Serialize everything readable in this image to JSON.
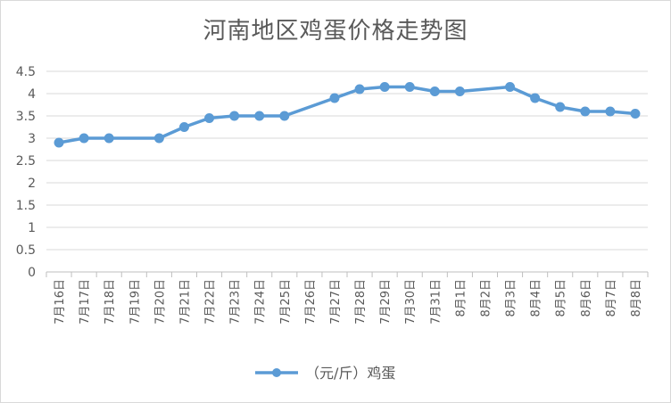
{
  "chart_data": {
    "type": "line",
    "title": "河南地区鸡蛋价格走势图",
    "categories": [
      "7月16日",
      "7月17日",
      "7月18日",
      "7月19日",
      "7月20日",
      "7月21日",
      "7月22日",
      "7月23日",
      "7月24日",
      "7月25日",
      "7月26日",
      "7月27日",
      "7月28日",
      "7月29日",
      "7月30日",
      "7月31日",
      "8月1日",
      "8月2日",
      "8月3日",
      "8月4日",
      "8月5日",
      "8月6日",
      "8月7日",
      "8月8日"
    ],
    "series": [
      {
        "name": "（元/斤）鸡蛋",
        "color": "#5b9bd5",
        "values": [
          2.9,
          3.0,
          3.0,
          null,
          3.0,
          3.25,
          3.45,
          3.5,
          3.5,
          3.5,
          null,
          3.9,
          4.1,
          4.15,
          4.15,
          4.05,
          4.05,
          null,
          4.15,
          3.9,
          3.7,
          3.6,
          3.6,
          3.55
        ]
      }
    ],
    "ylim": [
      0,
      4.5
    ],
    "yticks": [
      "0",
      "0.5",
      "1",
      "1.5",
      "2",
      "2.5",
      "3",
      "3.5",
      "4",
      "4.5"
    ],
    "grid": true,
    "legend_position": "bottom"
  }
}
